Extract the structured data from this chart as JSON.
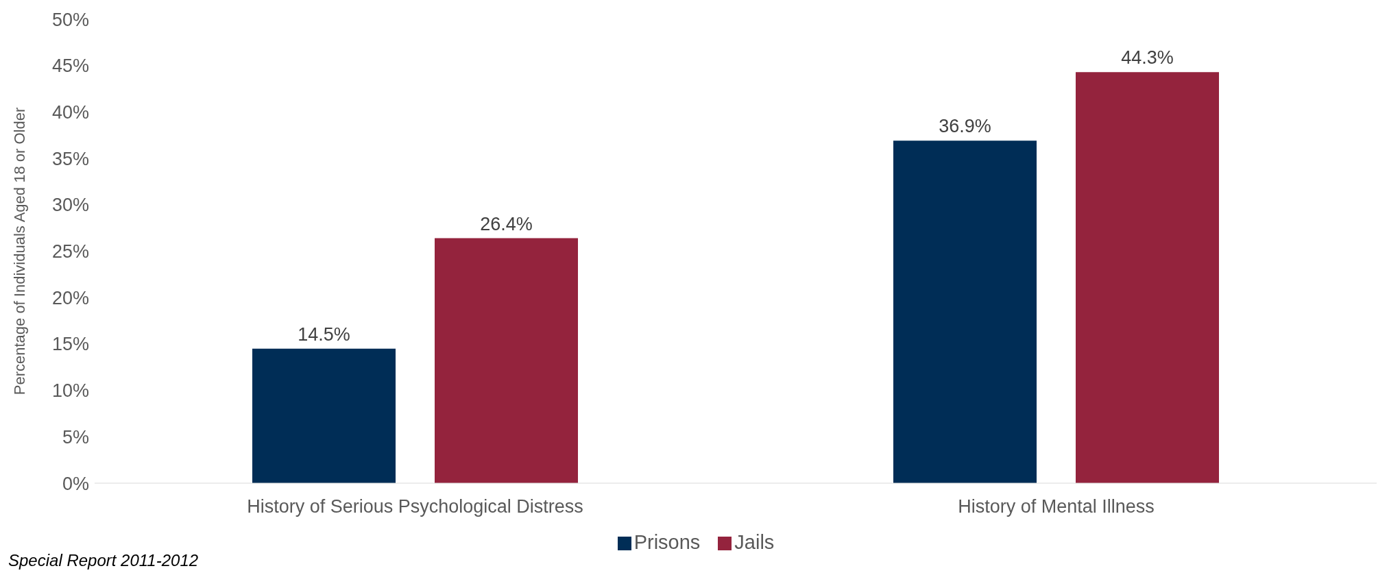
{
  "chart_data": {
    "type": "bar",
    "categories": [
      "History of Serious Psychological Distress",
      "History of Mental Illness"
    ],
    "series": [
      {
        "name": "Prisons",
        "color": "#002d56",
        "values": [
          14.5,
          36.9
        ],
        "value_labels": [
          "14.5%",
          "36.9%"
        ]
      },
      {
        "name": "Jails",
        "color": "#94233d",
        "values": [
          26.4,
          44.3
        ],
        "value_labels": [
          "26.4%",
          "44.3%"
        ]
      }
    ],
    "ylabel": "Percentage of Individuals Aged 18 or Older",
    "ylim": [
      0,
      50
    ],
    "yticks": [
      {
        "value": 0,
        "label": "0%"
      },
      {
        "value": 5,
        "label": "5%"
      },
      {
        "value": 10,
        "label": "10%"
      },
      {
        "value": 15,
        "label": "15%"
      },
      {
        "value": 20,
        "label": "20%"
      },
      {
        "value": 25,
        "label": "25%"
      },
      {
        "value": 30,
        "label": "30%"
      },
      {
        "value": 35,
        "label": "35%"
      },
      {
        "value": 40,
        "label": "40%"
      },
      {
        "value": 45,
        "label": "45%"
      },
      {
        "value": 50,
        "label": "50%"
      }
    ],
    "grid": false,
    "legend": "bottom",
    "annotations": [
      "Special Report 2011-2012"
    ]
  }
}
